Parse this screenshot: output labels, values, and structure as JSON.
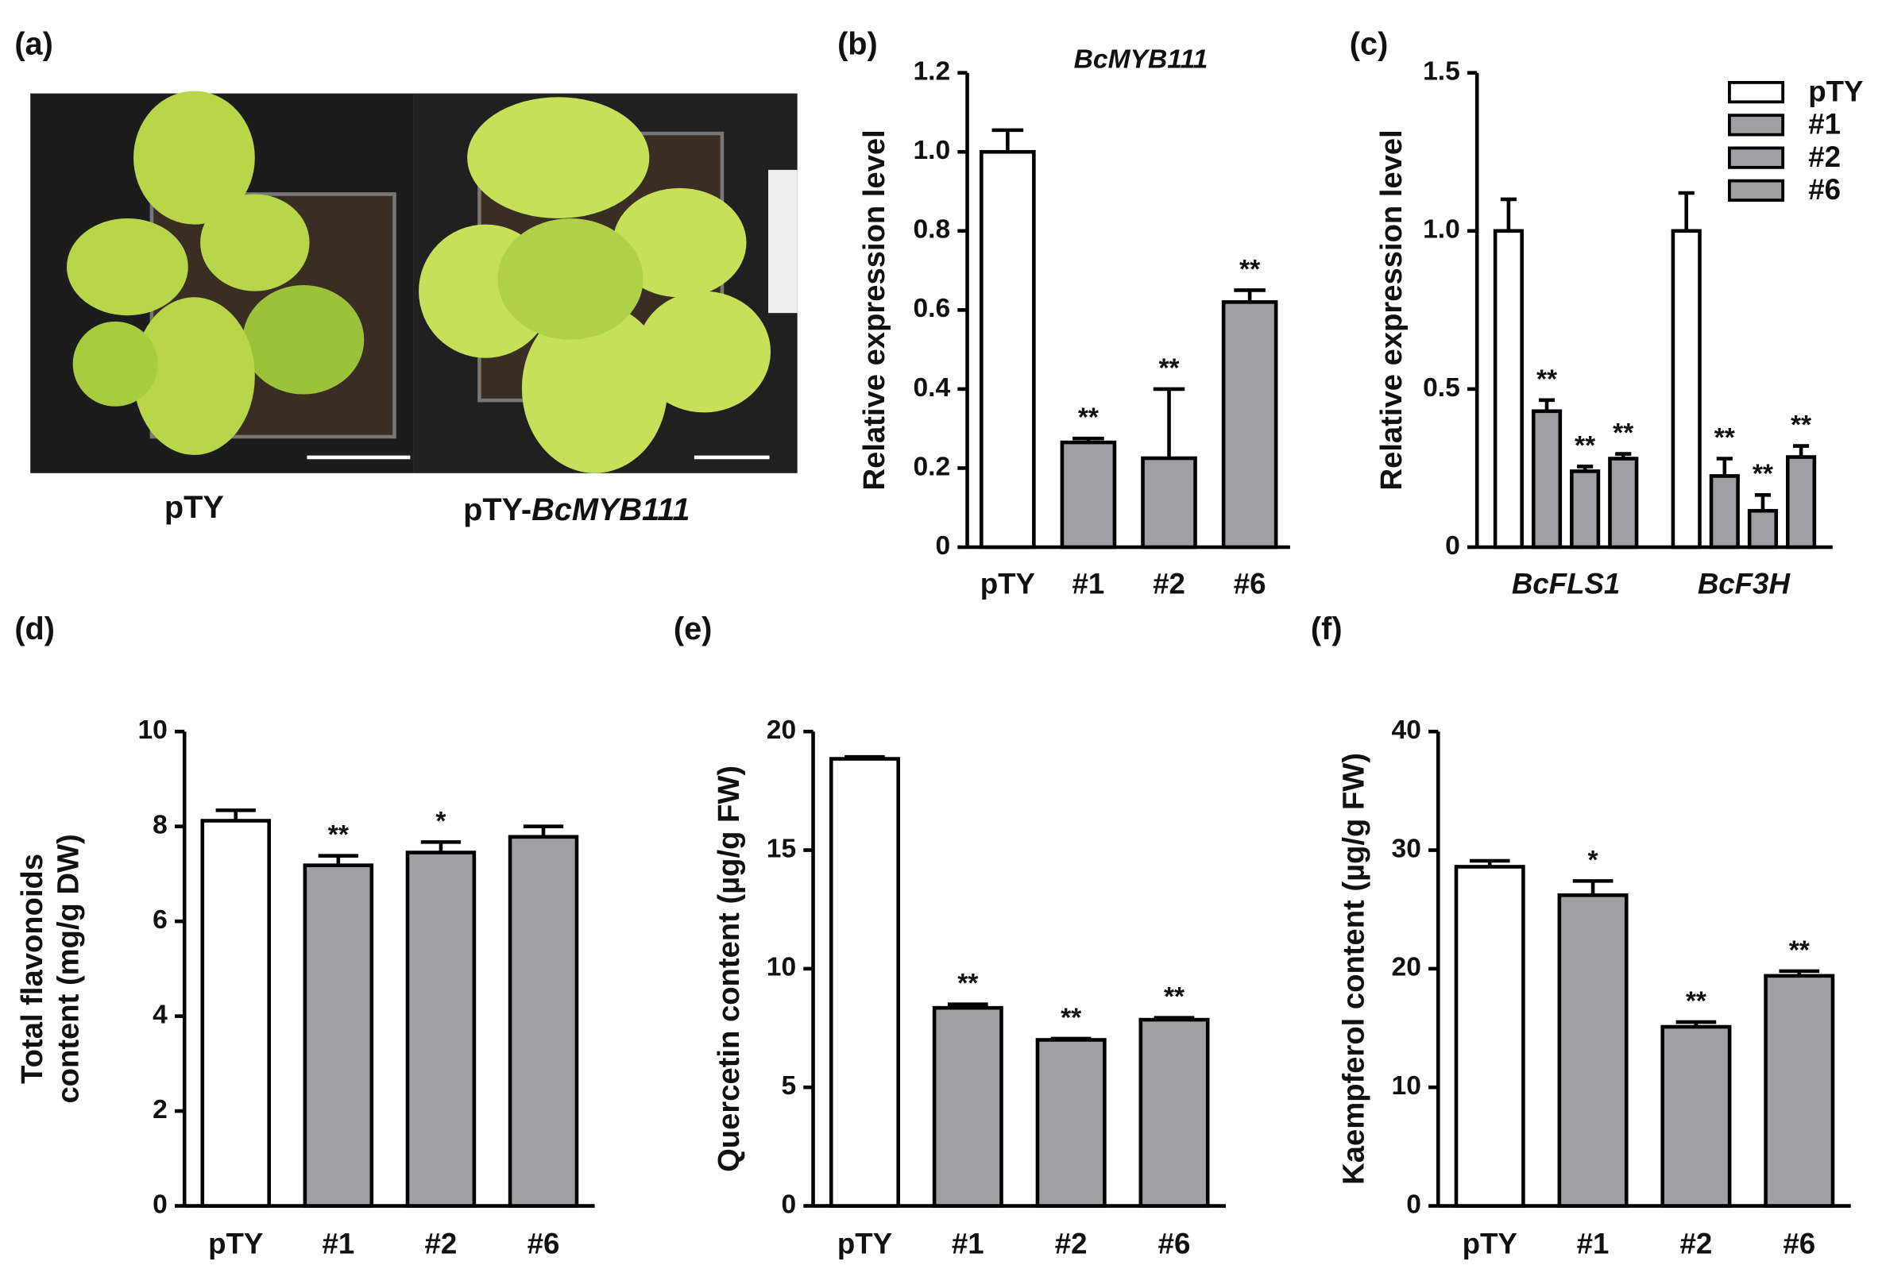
{
  "photo": {
    "label": "(a)",
    "captions": [
      "pTY",
      "pTY-",
      "BcMYB111"
    ]
  },
  "chart_data": [
    {
      "type": "bar",
      "label": "(b)",
      "title": "BcMYB111",
      "ylabel": [
        "Relative expression level"
      ],
      "categories": [
        "pTY",
        "#1",
        "#2",
        "#6"
      ],
      "values": [
        1.0,
        0.265,
        0.225,
        0.62
      ],
      "errors": [
        0.055,
        0.01,
        0.175,
        0.03
      ],
      "annotations": [
        null,
        "**",
        "**",
        "**"
      ],
      "colors": [
        "#ffffff",
        "#a0a0a4",
        "#a0a0a4",
        "#a0a0a4"
      ],
      "ylim": [
        0,
        1.2
      ],
      "yticks": [
        0,
        0.2,
        0.4,
        0.6,
        0.8,
        {
          "value": 1,
          "label": "1.0"
        },
        1.2
      ]
    },
    {
      "type": "bar",
      "label": "(c)",
      "ylabel": [
        "Relative expression level"
      ],
      "categories": [
        "BcFLS1",
        "BcF3H"
      ],
      "series": [
        {
          "name": "pTY",
          "color": "#ffffff",
          "values": [
            1.0,
            1.0
          ],
          "errors": [
            0.1,
            0.12
          ],
          "annotations": [
            null,
            null
          ]
        },
        {
          "name": "#1",
          "color": "#a0a0a4",
          "values": [
            0.43,
            0.225
          ],
          "errors": [
            0.035,
            0.055
          ],
          "annotations": [
            "**",
            "**"
          ]
        },
        {
          "name": "#2",
          "color": "#a0a0a4",
          "values": [
            0.24,
            0.115
          ],
          "errors": [
            0.015,
            0.05
          ],
          "annotations": [
            "**",
            "**"
          ]
        },
        {
          "name": "#6",
          "color": "#a0a0a4",
          "values": [
            0.28,
            0.285
          ],
          "errors": [
            0.015,
            0.035
          ],
          "annotations": [
            "**",
            "**"
          ]
        }
      ],
      "legend": "upper right",
      "ylim": [
        0,
        1.5
      ],
      "yticks": [
        0,
        0.5,
        {
          "value": 1,
          "label": "1.0"
        },
        1.5
      ]
    },
    {
      "type": "bar",
      "label": "(d)",
      "ylabel": [
        "Total flavonoids",
        "content (mg/g  DW)"
      ],
      "categories": [
        "pTY",
        "#1",
        "#2",
        "#6"
      ],
      "values": [
        8.12,
        7.18,
        7.45,
        7.78
      ],
      "errors": [
        0.22,
        0.2,
        0.22,
        0.22
      ],
      "annotations": [
        null,
        "**",
        "*",
        null
      ],
      "colors": [
        "#ffffff",
        "#a0a0a4",
        "#a0a0a4",
        "#a0a0a4"
      ],
      "ylim": [
        0,
        10
      ],
      "yticks": [
        0,
        2,
        4,
        6,
        8,
        10
      ]
    },
    {
      "type": "bar",
      "label": "(e)",
      "ylabel": [
        "Quercetin content (µg/g  FW)"
      ],
      "categories": [
        "pTY",
        "#1",
        "#2",
        "#6"
      ],
      "values": [
        18.85,
        8.35,
        7.0,
        7.85
      ],
      "errors": [
        0.08,
        0.15,
        0.05,
        0.08
      ],
      "annotations": [
        null,
        "**",
        "**",
        "**"
      ],
      "colors": [
        "#ffffff",
        "#a0a0a4",
        "#a0a0a4",
        "#a0a0a4"
      ],
      "ylim": [
        0,
        20
      ],
      "yticks": [
        0,
        5,
        10,
        15,
        20
      ]
    },
    {
      "type": "bar",
      "label": "(f)",
      "ylabel": [
        "Kaempferol content (µg/g  FW)"
      ],
      "categories": [
        "pTY",
        "#1",
        "#2",
        "#6"
      ],
      "values": [
        28.6,
        26.2,
        15.1,
        19.4
      ],
      "errors": [
        0.5,
        1.2,
        0.4,
        0.4
      ],
      "annotations": [
        null,
        "*",
        "**",
        "**"
      ],
      "colors": [
        "#ffffff",
        "#a0a0a4",
        "#a0a0a4",
        "#a0a0a4"
      ],
      "ylim": [
        0,
        40
      ],
      "yticks": [
        0,
        10,
        20,
        30,
        40
      ]
    }
  ]
}
